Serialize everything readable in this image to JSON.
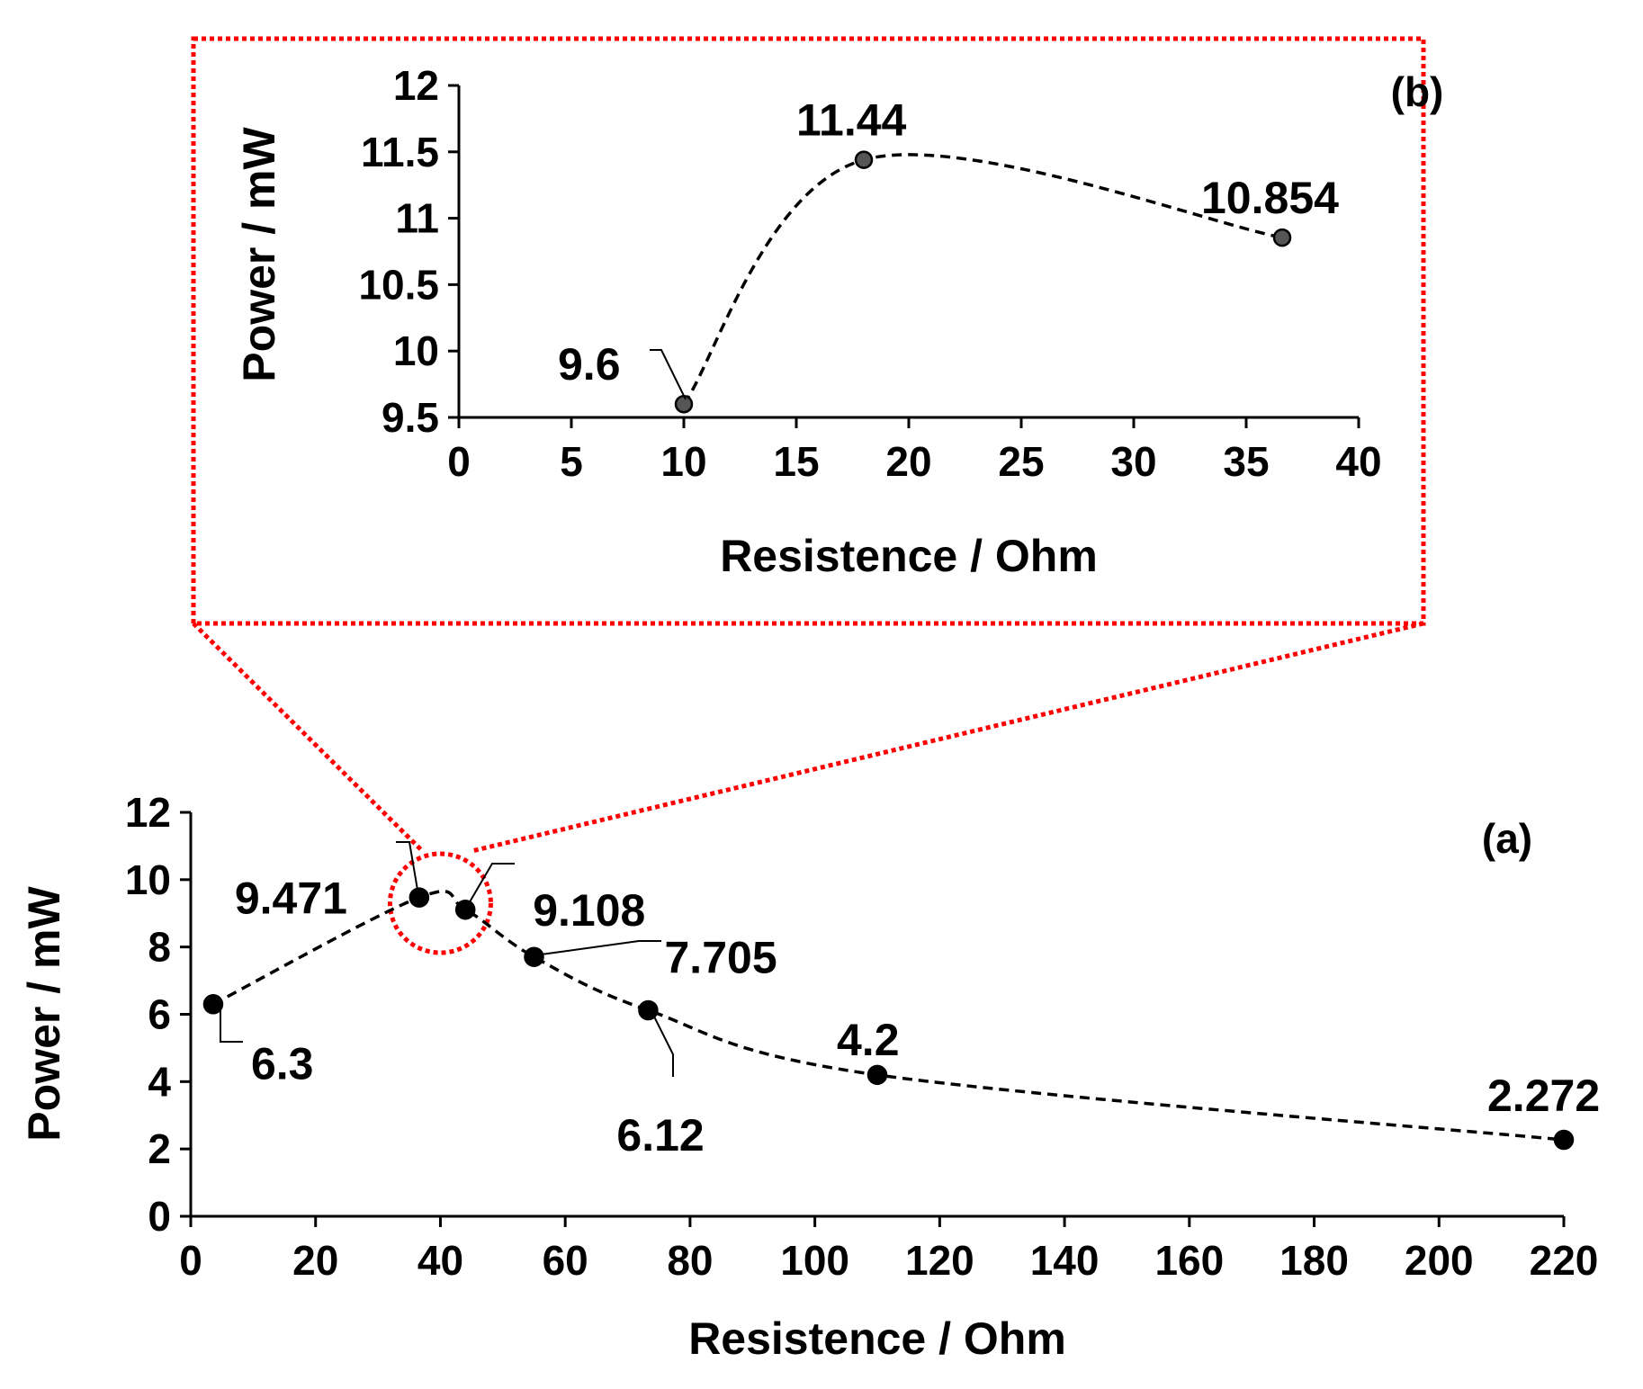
{
  "chart_data": [
    {
      "id": "a",
      "type": "scatter",
      "panel_label": "(a)",
      "xlabel": "Resistence / Ohm",
      "ylabel": "Power / mW",
      "xlim": [
        0,
        220
      ],
      "ylim": [
        0,
        12
      ],
      "xticks": [
        "0",
        "20",
        "40",
        "60",
        "80",
        "100",
        "120",
        "140",
        "160",
        "180",
        "200",
        "220"
      ],
      "yticks": [
        "0",
        "2",
        "4",
        "6",
        "8",
        "10",
        "12"
      ],
      "line_style": "dashed smooth",
      "series": [
        {
          "name": "Power",
          "x": [
            3.6,
            36.6,
            44,
            55,
            73.3,
            110,
            220
          ],
          "y": [
            6.3,
            9.471,
            9.108,
            7.705,
            6.12,
            4.2,
            2.272
          ],
          "labels": [
            "6.3",
            "9.471",
            "9.108",
            "7.705",
            "6.12",
            "4.2",
            "2.272"
          ]
        }
      ]
    },
    {
      "id": "b",
      "type": "scatter",
      "panel_label": "(b)",
      "xlabel": "Resistence / Ohm",
      "ylabel": "Power / mW",
      "xlim": [
        0,
        40
      ],
      "ylim": [
        9.5,
        12
      ],
      "xticks": [
        "0",
        "5",
        "10",
        "15",
        "20",
        "25",
        "30",
        "35",
        "40"
      ],
      "yticks": [
        "9.5",
        "10",
        "10.5",
        "11",
        "11.5",
        "12"
      ],
      "line_style": "dashed smooth",
      "series": [
        {
          "name": "Power",
          "x": [
            10,
            18,
            36.6
          ],
          "y": [
            9.6,
            11.44,
            10.854
          ],
          "labels": [
            "9.6",
            "11.44",
            "10.854"
          ]
        }
      ]
    }
  ],
  "colors": {
    "zoom_highlight": "#ff0000",
    "series_line": "#000000",
    "marker_a": "#000000",
    "marker_b": "#555555"
  }
}
